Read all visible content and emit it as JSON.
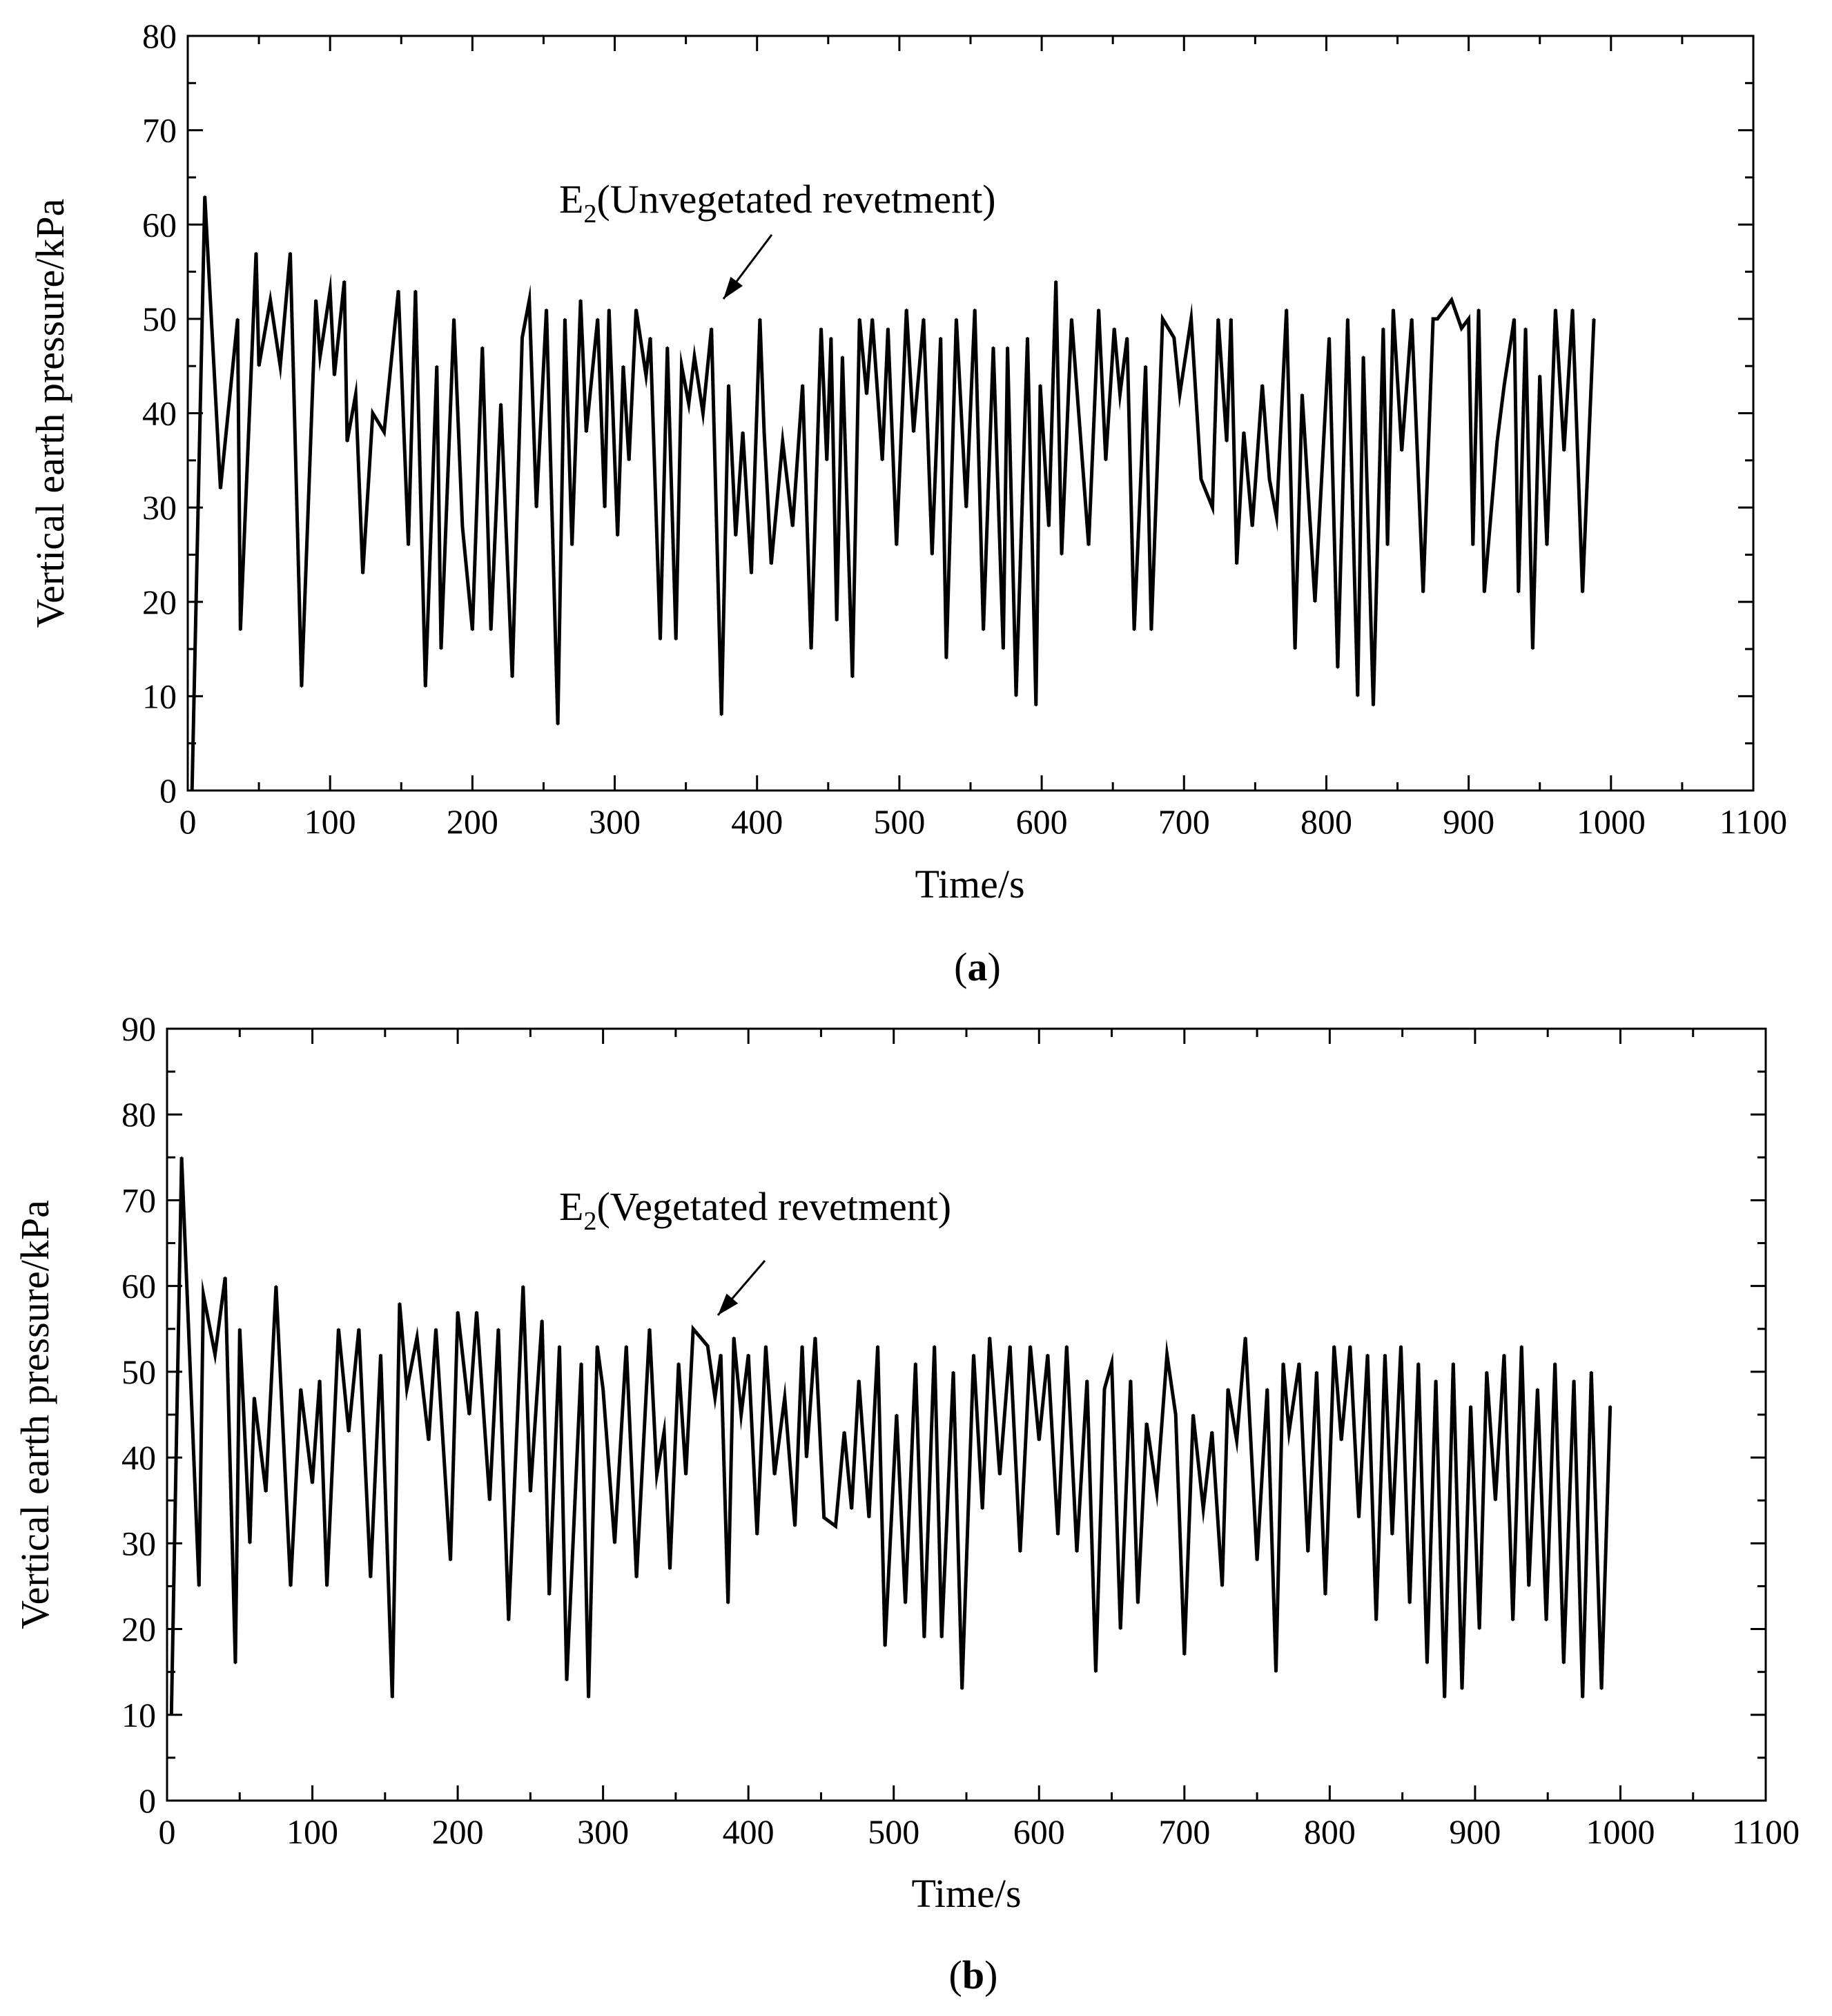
{
  "figure": {
    "panels": [
      {
        "caption_letter": "a",
        "annotation": {
          "main": "E",
          "sub": "2",
          "rest": "(Unvegetated revetment)"
        }
      },
      {
        "caption_letter": "b",
        "annotation": {
          "main": "E",
          "sub": "2",
          "rest": "(Vegetated revetment)"
        }
      }
    ]
  },
  "chart_data": [
    {
      "type": "line",
      "title": "",
      "xlabel": "Time/s",
      "ylabel": "Vertical earth pressure/kPa",
      "xlim": [
        0,
        1100
      ],
      "ylim": [
        0,
        80
      ],
      "xticks": [
        0,
        100,
        200,
        300,
        400,
        500,
        600,
        700,
        800,
        900,
        1000,
        1100
      ],
      "yticks": [
        0,
        10,
        20,
        30,
        40,
        50,
        60,
        70,
        80
      ],
      "grid": false,
      "series": [
        {
          "name": "E2 (Unvegetated revetment)",
          "x": [
            3,
            12,
            23,
            35,
            37,
            48,
            50,
            58,
            65,
            72,
            80,
            90,
            93,
            100,
            103,
            110,
            112,
            118,
            123,
            130,
            138,
            148,
            155,
            160,
            167,
            175,
            178,
            187,
            193,
            200,
            207,
            213,
            220,
            228,
            235,
            240,
            245,
            252,
            260,
            265,
            270,
            276,
            280,
            288,
            293,
            296,
            302,
            306,
            310,
            315,
            322,
            325,
            332,
            337,
            343,
            347,
            352,
            356,
            362,
            368,
            375,
            380,
            385,
            390,
            396,
            402,
            405,
            410,
            418,
            425,
            432,
            438,
            445,
            449,
            452,
            456,
            460,
            467,
            472,
            477,
            481,
            488,
            492,
            498,
            505,
            510,
            517,
            523,
            529,
            533,
            540,
            547,
            553,
            559,
            566,
            573,
            576,
            582,
            590,
            596,
            599,
            605,
            610,
            614,
            621,
            627,
            633,
            640,
            645,
            651,
            655,
            660,
            665,
            673,
            677,
            685,
            693,
            697,
            705,
            712,
            720,
            724,
            730,
            733,
            737,
            742,
            748,
            755,
            760,
            765,
            772,
            778,
            783,
            792,
            802,
            808,
            815,
            822,
            826,
            833,
            840,
            843,
            847,
            853,
            860,
            868,
            875,
            878,
            883,
            888,
            895,
            900,
            903,
            907,
            911,
            920,
            925,
            932,
            935,
            940,
            945,
            950,
            955,
            961,
            967,
            973,
            980,
            988
          ],
          "values": [
            0,
            63,
            32,
            50,
            17,
            57,
            45,
            52,
            45,
            57,
            11,
            52,
            46,
            53,
            44,
            54,
            37,
            42,
            23,
            40,
            38,
            53,
            26,
            53,
            11,
            45,
            15,
            50,
            28,
            17,
            47,
            17,
            41,
            12,
            48,
            52,
            30,
            51,
            7,
            50,
            26,
            52,
            38,
            50,
            30,
            51,
            27,
            45,
            35,
            51,
            44,
            48,
            16,
            47,
            16,
            45,
            41,
            46,
            40,
            49,
            8,
            43,
            27,
            38,
            23,
            50,
            38,
            24,
            37,
            28,
            43,
            15,
            49,
            35,
            48,
            18,
            46,
            12,
            50,
            42,
            50,
            35,
            49,
            26,
            51,
            38,
            50,
            25,
            48,
            14,
            50,
            30,
            51,
            17,
            47,
            15,
            47,
            10,
            48,
            9,
            43,
            28,
            54,
            25,
            50,
            38,
            26,
            51,
            35,
            49,
            42,
            48,
            17,
            45,
            17,
            50,
            48,
            42,
            50,
            33,
            30,
            50,
            37,
            50,
            24,
            38,
            28,
            43,
            33,
            29,
            51,
            15,
            42,
            20,
            48,
            13,
            50,
            10,
            46,
            9,
            49,
            26,
            51,
            36,
            50,
            21,
            50,
            50,
            51,
            52,
            49,
            50,
            26,
            51,
            21,
            37,
            43,
            50,
            21,
            49,
            15,
            44,
            26,
            51,
            36,
            51,
            21,
            50
          ],
          "color": "#000000"
        }
      ]
    },
    {
      "type": "line",
      "title": "",
      "xlabel": "Time/s",
      "ylabel": "Vertical earth pressure/kPa",
      "xlim": [
        0,
        1100
      ],
      "ylim": [
        0,
        90
      ],
      "xticks": [
        0,
        100,
        200,
        300,
        400,
        500,
        600,
        700,
        800,
        900,
        1000,
        1100
      ],
      "yticks": [
        0,
        10,
        20,
        30,
        40,
        50,
        60,
        70,
        80,
        90
      ],
      "grid": false,
      "series": [
        {
          "name": "E2 (Vegetated revetment)",
          "x": [
            3,
            10,
            22,
            25,
            33,
            40,
            47,
            50,
            57,
            60,
            68,
            75,
            85,
            92,
            100,
            105,
            110,
            118,
            125,
            132,
            140,
            147,
            155,
            160,
            165,
            172,
            180,
            185,
            195,
            200,
            208,
            213,
            222,
            228,
            235,
            245,
            250,
            258,
            263,
            270,
            275,
            285,
            290,
            296,
            300,
            308,
            316,
            323,
            332,
            337,
            342,
            346,
            352,
            357,
            362,
            372,
            377,
            381,
            386,
            390,
            395,
            400,
            406,
            412,
            418,
            425,
            432,
            437,
            440,
            446,
            452,
            460,
            466,
            471,
            476,
            483,
            489,
            494,
            502,
            508,
            515,
            521,
            528,
            533,
            541,
            547,
            555,
            561,
            566,
            573,
            580,
            587,
            594,
            600,
            606,
            613,
            619,
            626,
            633,
            639,
            645,
            650,
            656,
            663,
            668,
            674,
            681,
            688,
            694,
            700,
            706,
            713,
            719,
            726,
            730,
            736,
            742,
            750,
            757,
            763,
            768,
            772,
            779,
            785,
            791,
            797,
            803,
            808,
            814,
            820,
            826,
            832,
            838,
            843,
            849,
            855,
            861,
            867,
            873,
            879,
            885,
            891,
            897,
            903,
            908,
            914,
            920,
            926,
            932,
            937,
            943,
            949,
            955,
            961,
            968,
            974,
            980,
            987,
            993
          ],
          "values": [
            10,
            75,
            25,
            59,
            52,
            61,
            16,
            55,
            30,
            47,
            36,
            60,
            25,
            48,
            37,
            49,
            25,
            55,
            43,
            55,
            26,
            52,
            12,
            58,
            48,
            54,
            42,
            55,
            28,
            57,
            45,
            57,
            35,
            55,
            21,
            60,
            36,
            56,
            24,
            53,
            14,
            51,
            12,
            53,
            48,
            30,
            53,
            26,
            55,
            38,
            43,
            27,
            51,
            38,
            55,
            53,
            47,
            52,
            23,
            54,
            45,
            52,
            31,
            53,
            38,
            47,
            32,
            53,
            40,
            54,
            33,
            32,
            43,
            34,
            49,
            33,
            53,
            18,
            45,
            23,
            51,
            19,
            53,
            19,
            50,
            13,
            52,
            34,
            54,
            38,
            53,
            29,
            53,
            42,
            52,
            31,
            53,
            29,
            49,
            15,
            48,
            51,
            20,
            49,
            23,
            44,
            36,
            52,
            45,
            17,
            45,
            34,
            43,
            25,
            48,
            42,
            54,
            28,
            48,
            15,
            51,
            43,
            51,
            29,
            50,
            24,
            53,
            42,
            53,
            33,
            52,
            21,
            52,
            31,
            53,
            23,
            51,
            16,
            49,
            12,
            51,
            13,
            46,
            20,
            50,
            35,
            52,
            21,
            53,
            25,
            48,
            21,
            51,
            16,
            49,
            12,
            50,
            13,
            46
          ],
          "color": "#000000"
        }
      ]
    }
  ]
}
